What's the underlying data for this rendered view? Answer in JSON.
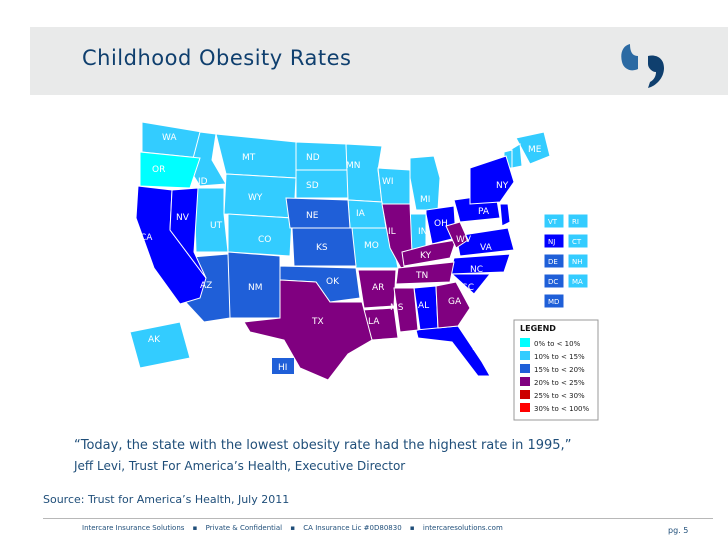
{
  "title": "Childhood Obesity Rates",
  "colors": {
    "band1": "#00ffff",
    "band2": "#33ccff",
    "band3": "#1f5fd8",
    "band4": "#0000ff",
    "band5": "#800080",
    "band6": "#cc0000",
    "band7": "#ff0000",
    "title": "#0f3f6e",
    "text": "#1f4e79"
  },
  "map": {
    "state_labels": [
      "WA",
      "OR",
      "ID",
      "MT",
      "ND",
      "SD",
      "WY",
      "MN",
      "WI",
      "MI",
      "NE",
      "IA",
      "IL",
      "IN",
      "OH",
      "PA",
      "NY",
      "ME",
      "NV",
      "UT",
      "CO",
      "KS",
      "MO",
      "KY",
      "WV",
      "VA",
      "CA",
      "AZ",
      "NM",
      "OK",
      "AR",
      "TN",
      "NC",
      "SC",
      "TX",
      "LA",
      "MS",
      "AL",
      "GA",
      "FL",
      "AK",
      "HI"
    ],
    "box_labels": [
      "VT",
      "RI",
      "NJ",
      "CT",
      "DE",
      "NH",
      "DC",
      "MA",
      "MD"
    ]
  },
  "legend": {
    "title": "LEGEND",
    "items": [
      {
        "label": "0% to < 10%",
        "color": "#00ffff"
      },
      {
        "label": "10% to < 15%",
        "color": "#33ccff"
      },
      {
        "label": "15% to < 20%",
        "color": "#1f5fd8"
      },
      {
        "label": "20% to < 25%",
        "color": "#800080"
      },
      {
        "label": "25% to < 30%",
        "color": "#cc0000"
      },
      {
        "label": "30% to < 100%",
        "color": "#ff0000"
      }
    ]
  },
  "quote": "“Today, the state with the lowest obesity rate had the highest rate in 1995,”",
  "attribution": "Jeff Levi, Trust For America’s Health, Executive Director",
  "source": "Source: Trust for America’s Health, July 2011",
  "footer": {
    "items": [
      "Intercare Insurance Solutions",
      "Private & Confidential",
      "CA Insurance Lic #0D80830",
      "intercaresolutions.com"
    ],
    "bullet": "▪",
    "page": "pg. 5"
  }
}
